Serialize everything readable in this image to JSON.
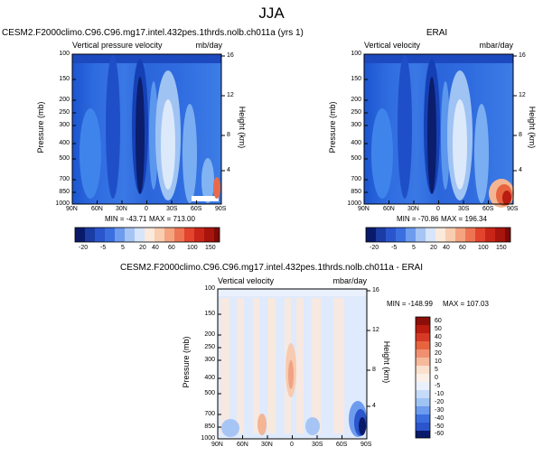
{
  "page_title": "JJA",
  "colors": {
    "deep_blue": "#0b1d6b",
    "mid_blue": "#2a63d6",
    "light_blue": "#9fc3f3",
    "pale": "#eef4fd",
    "peach": "#fbe4d2",
    "red": "#d53a26",
    "dark_red": "#8b0f08"
  },
  "chart_data": [
    {
      "type": "heatmap",
      "title": "CESM2.F2000climo.C96.C96.mg17.intel.432pes.1thrds.nolb.ch011a (yrs 1)",
      "label_left": "Vertical pressure velocity",
      "units": "mb/day",
      "ylabel": "Pressure (mb)",
      "y2label": "Height (km)",
      "x_ticks": [
        "90N",
        "60N",
        "30N",
        "0",
        "30S",
        "60S",
        "90S"
      ],
      "y_ticks": [
        "100",
        "150",
        "200",
        "250",
        "300",
        "400",
        "500",
        "700",
        "850",
        "1000"
      ],
      "y2_ticks": [
        "16",
        "12",
        "8",
        "4"
      ],
      "stats": {
        "min": "MIN = -43.71",
        "max": "MAX = 713.00"
      },
      "colorbar": [
        "-20",
        "-5",
        "5",
        "20",
        "40",
        "60",
        "100",
        "150"
      ]
    },
    {
      "type": "heatmap",
      "title": "ERAI",
      "label_left": "Vertical velocity",
      "units": "mbar/day",
      "ylabel": "Pressure (mb)",
      "y2label": "Height (km)",
      "x_ticks": [
        "90N",
        "60N",
        "30N",
        "0",
        "30S",
        "60S",
        "90S"
      ],
      "y_ticks": [
        "100",
        "150",
        "200",
        "250",
        "300",
        "400",
        "500",
        "700",
        "850",
        "1000"
      ],
      "y2_ticks": [
        "16",
        "12",
        "8",
        "4"
      ],
      "stats": {
        "min": "MIN = -70.86",
        "max": "MAX = 196.34"
      },
      "colorbar": [
        "-20",
        "-5",
        "5",
        "20",
        "40",
        "60",
        "100",
        "150"
      ]
    },
    {
      "type": "heatmap",
      "title": "CESM2.F2000climo.C96.C96.mg17.intel.432pes.1thrds.nolb.ch011a - ERAI",
      "label_left": "Vertical velocity",
      "units": "mbar/day",
      "ylabel": "Pressure (mb)",
      "y2label": "Height (km)",
      "x_ticks": [
        "90N",
        "60N",
        "30N",
        "0",
        "30S",
        "60S",
        "90S"
      ],
      "y_ticks": [
        "100",
        "150",
        "200",
        "250",
        "300",
        "400",
        "500",
        "700",
        "850",
        "1000"
      ],
      "y2_ticks": [
        "16",
        "12",
        "8",
        "4"
      ],
      "stats": {
        "min": "MIN = -148.99",
        "max": "MAX = 107.03"
      },
      "colorbar": [
        "60",
        "50",
        "40",
        "30",
        "20",
        "10",
        "5",
        "0",
        "-5",
        "-10",
        "-20",
        "-30",
        "-40",
        "-50",
        "-60"
      ]
    }
  ]
}
